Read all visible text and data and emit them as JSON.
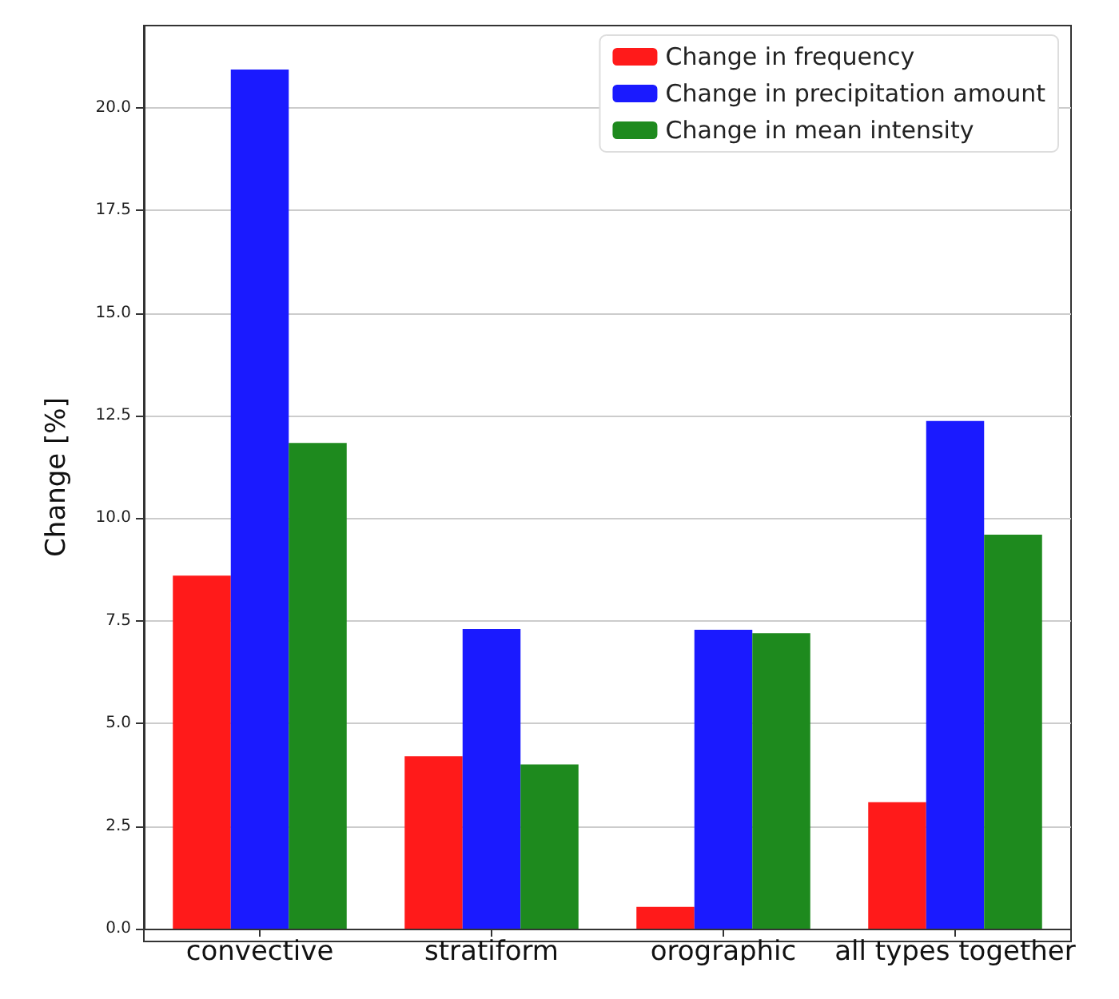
{
  "chart_data": {
    "type": "bar",
    "ylabel": "Change [%]",
    "categories": [
      "convective",
      "stratiform",
      "orographic",
      "all types together"
    ],
    "series": [
      {
        "name": "Change in frequency",
        "color": "#ff1a1a",
        "values": [
          8.6,
          4.2,
          0.53,
          3.08
        ]
      },
      {
        "name": "Change in precipitation amount",
        "color": "#1a1aff",
        "values": [
          20.93,
          7.3,
          7.28,
          12.37
        ]
      },
      {
        "name": "Change in mean intensity",
        "color": "#1e8a1e",
        "values": [
          11.83,
          4.0,
          7.2,
          9.6
        ]
      }
    ],
    "ylim": [
      0,
      22
    ],
    "yticks": [
      {
        "value": 0,
        "label": "0.0"
      },
      2.5,
      {
        "value": 5,
        "label": "5.0"
      },
      7.5,
      {
        "value": 10,
        "label": "10.0"
      },
      12.5,
      {
        "value": 15,
        "label": "15.0"
      },
      17.5,
      {
        "value": 20,
        "label": "20.0"
      }
    ],
    "grid": "y",
    "legend": "top right"
  }
}
